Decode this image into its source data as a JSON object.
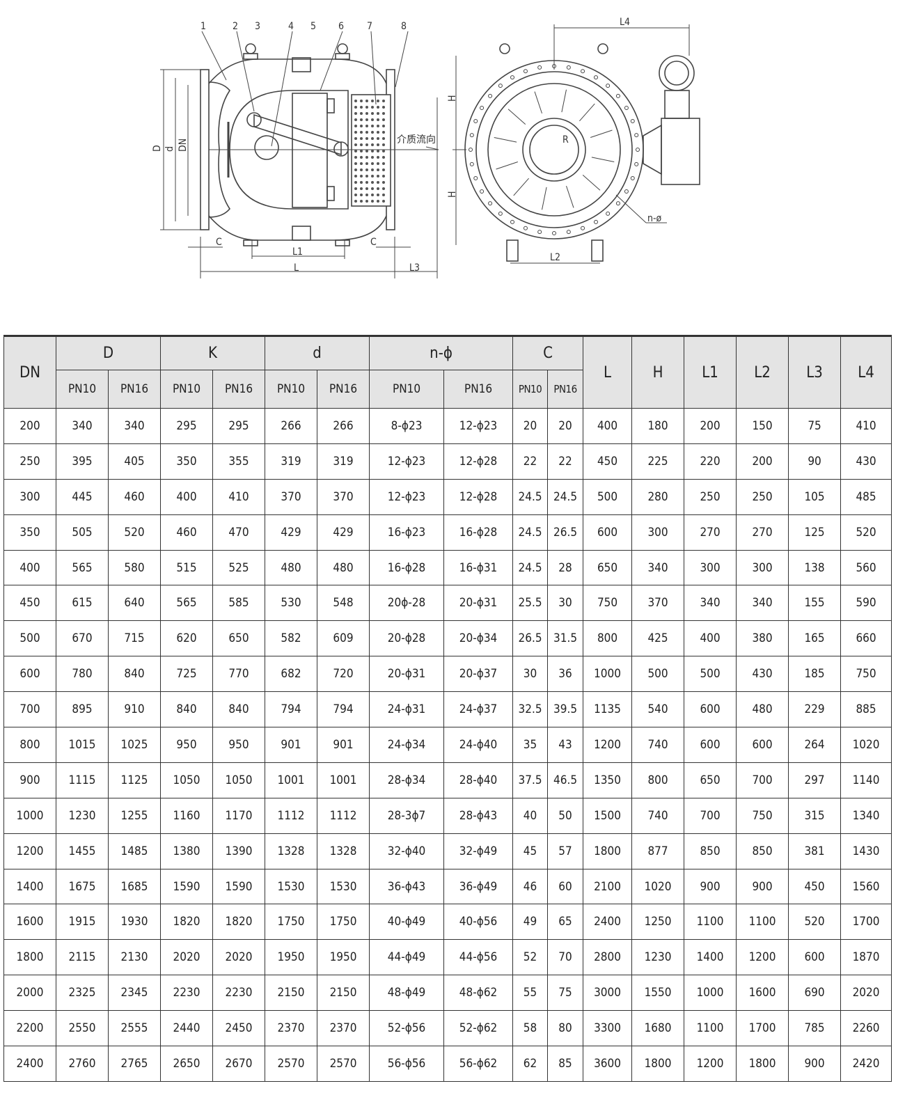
{
  "drawing": {
    "part_numbers": [
      "1",
      "2",
      "3",
      "4",
      "5",
      "6",
      "7",
      "8"
    ],
    "labels": {
      "D": "D",
      "d": "d",
      "DN": "DN",
      "C": "C",
      "L1": "L1",
      "L": "L",
      "L3": "L3",
      "flow": "介质流向",
      "H": "H",
      "L4": "L4",
      "L2": "L2",
      "n_phi": "n-ø",
      "R": "R"
    }
  },
  "table": {
    "headers": {
      "DN": "DN",
      "D": "D",
      "K": "K",
      "d": "d",
      "n_phi": "n-ϕ",
      "C": "C",
      "L": "L",
      "H": "H",
      "L1": "L1",
      "L2": "L2",
      "L3": "L3",
      "L4": "L4",
      "pn10": "PN10",
      "pn16": "PN16"
    },
    "rows": [
      [
        "200",
        "340",
        "340",
        "295",
        "295",
        "266",
        "266",
        "8-ϕ23",
        "12-ϕ23",
        "20",
        "20",
        "400",
        "180",
        "200",
        "150",
        "75",
        "410"
      ],
      [
        "250",
        "395",
        "405",
        "350",
        "355",
        "319",
        "319",
        "12-ϕ23",
        "12-ϕ28",
        "22",
        "22",
        "450",
        "225",
        "220",
        "200",
        "90",
        "430"
      ],
      [
        "300",
        "445",
        "460",
        "400",
        "410",
        "370",
        "370",
        "12-ϕ23",
        "12-ϕ28",
        "24.5",
        "24.5",
        "500",
        "280",
        "250",
        "250",
        "105",
        "485"
      ],
      [
        "350",
        "505",
        "520",
        "460",
        "470",
        "429",
        "429",
        "16-ϕ23",
        "16-ϕ28",
        "24.5",
        "26.5",
        "600",
        "300",
        "270",
        "270",
        "125",
        "520"
      ],
      [
        "400",
        "565",
        "580",
        "515",
        "525",
        "480",
        "480",
        "16-ϕ28",
        "16-ϕ31",
        "24.5",
        "28",
        "650",
        "340",
        "300",
        "300",
        "138",
        "560"
      ],
      [
        "450",
        "615",
        "640",
        "565",
        "585",
        "530",
        "548",
        "20ϕ-28",
        "20-ϕ31",
        "25.5",
        "30",
        "750",
        "370",
        "340",
        "340",
        "155",
        "590"
      ],
      [
        "500",
        "670",
        "715",
        "620",
        "650",
        "582",
        "609",
        "20-ϕ28",
        "20-ϕ34",
        "26.5",
        "31.5",
        "800",
        "425",
        "400",
        "380",
        "165",
        "660"
      ],
      [
        "600",
        "780",
        "840",
        "725",
        "770",
        "682",
        "720",
        "20-ϕ31",
        "20-ϕ37",
        "30",
        "36",
        "1000",
        "500",
        "500",
        "430",
        "185",
        "750"
      ],
      [
        "700",
        "895",
        "910",
        "840",
        "840",
        "794",
        "794",
        "24-ϕ31",
        "24-ϕ37",
        "32.5",
        "39.5",
        "1135",
        "540",
        "600",
        "480",
        "229",
        "885"
      ],
      [
        "800",
        "1015",
        "1025",
        "950",
        "950",
        "901",
        "901",
        "24-ϕ34",
        "24-ϕ40",
        "35",
        "43",
        "1200",
        "740",
        "600",
        "600",
        "264",
        "1020"
      ],
      [
        "900",
        "1115",
        "1125",
        "1050",
        "1050",
        "1001",
        "1001",
        "28-ϕ34",
        "28-ϕ40",
        "37.5",
        "46.5",
        "1350",
        "800",
        "650",
        "700",
        "297",
        "1140"
      ],
      [
        "1000",
        "1230",
        "1255",
        "1160",
        "1170",
        "1112",
        "1112",
        "28-3ϕ7",
        "28-ϕ43",
        "40",
        "50",
        "1500",
        "740",
        "700",
        "750",
        "315",
        "1340"
      ],
      [
        "1200",
        "1455",
        "1485",
        "1380",
        "1390",
        "1328",
        "1328",
        "32-ϕ40",
        "32-ϕ49",
        "45",
        "57",
        "1800",
        "877",
        "850",
        "850",
        "381",
        "1430"
      ],
      [
        "1400",
        "1675",
        "1685",
        "1590",
        "1590",
        "1530",
        "1530",
        "36-ϕ43",
        "36-ϕ49",
        "46",
        "60",
        "2100",
        "1020",
        "900",
        "900",
        "450",
        "1560"
      ],
      [
        "1600",
        "1915",
        "1930",
        "1820",
        "1820",
        "1750",
        "1750",
        "40-ϕ49",
        "40-ϕ56",
        "49",
        "65",
        "2400",
        "1250",
        "1100",
        "1100",
        "520",
        "1700"
      ],
      [
        "1800",
        "2115",
        "2130",
        "2020",
        "2020",
        "1950",
        "1950",
        "44-ϕ49",
        "44-ϕ56",
        "52",
        "70",
        "2800",
        "1230",
        "1400",
        "1200",
        "600",
        "1870"
      ],
      [
        "2000",
        "2325",
        "2345",
        "2230",
        "2230",
        "2150",
        "2150",
        "48-ϕ49",
        "48-ϕ62",
        "55",
        "75",
        "3000",
        "1550",
        "1000",
        "1600",
        "690",
        "2020"
      ],
      [
        "2200",
        "2550",
        "2555",
        "2440",
        "2450",
        "2370",
        "2370",
        "52-ϕ56",
        "52-ϕ62",
        "58",
        "80",
        "3300",
        "1680",
        "1100",
        "1700",
        "785",
        "2260"
      ],
      [
        "2400",
        "2760",
        "2765",
        "2650",
        "2670",
        "2570",
        "2570",
        "56-ϕ56",
        "56-ϕ62",
        "62",
        "85",
        "3600",
        "1800",
        "1200",
        "1800",
        "900",
        "2420"
      ]
    ]
  }
}
